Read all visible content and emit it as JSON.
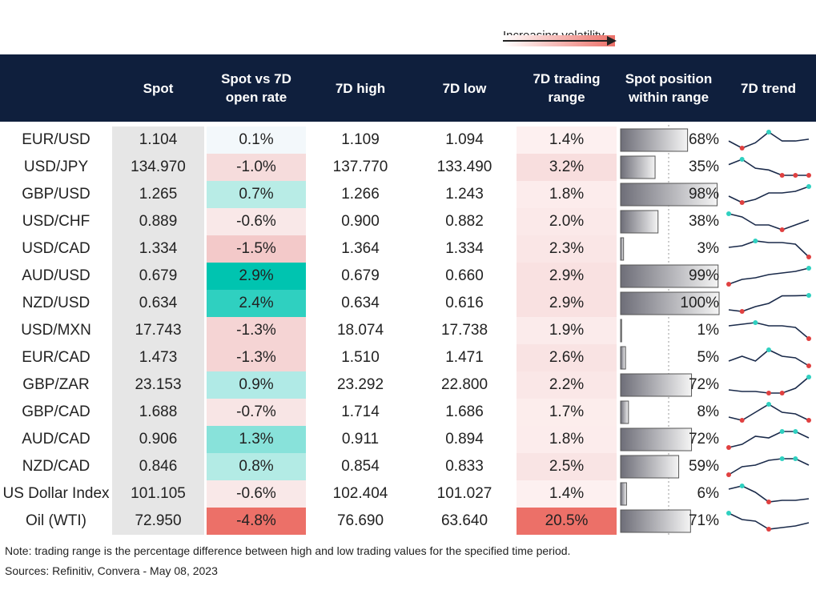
{
  "legend": {
    "text": "Increasing volatility"
  },
  "headers": [
    "Spot",
    "Spot vs 7D open rate",
    "7D high",
    "7D low",
    "7D trading range",
    "Spot position within range",
    "7D trend"
  ],
  "settings": {
    "header_color": "#0f1f3d",
    "spot_color": "#e6e6e6",
    "trend_line_color": "#1a2a4a",
    "max_color": "#2fd0c0",
    "min_color": "#e04040"
  },
  "rows": [
    {
      "pair": "EUR/USD",
      "spot": "1.104",
      "change": "0.1%",
      "change_color": "#f3f8fb",
      "high": "1.109",
      "low": "1.094",
      "range": "1.4%",
      "range_color": "#fdf0f0",
      "position": 68,
      "position_label": "68%",
      "trend": [
        0.5,
        0.1,
        0.4,
        1.0,
        0.5,
        0.5,
        0.6
      ]
    },
    {
      "pair": "USD/JPY",
      "spot": "134.970",
      "change": "-1.0%",
      "change_color": "#f6dcdc",
      "high": "137.770",
      "low": "133.490",
      "range": "3.2%",
      "range_color": "#f8dede",
      "position": 35,
      "position_label": "35%",
      "trend": [
        0.7,
        1.0,
        0.5,
        0.4,
        0.1,
        0.1,
        0.1
      ]
    },
    {
      "pair": "GBP/USD",
      "spot": "1.265",
      "change": "0.7%",
      "change_color": "#b8ece6",
      "high": "1.266",
      "low": "1.243",
      "range": "1.8%",
      "range_color": "#fcecec",
      "position": 98,
      "position_label": "98%",
      "trend": [
        0.4,
        0.0,
        0.2,
        0.6,
        0.6,
        0.7,
        1.0
      ]
    },
    {
      "pair": "USD/CHF",
      "spot": "0.889",
      "change": "-0.6%",
      "change_color": "#f9e8e8",
      "high": "0.900",
      "low": "0.882",
      "range": "2.0%",
      "range_color": "#fbe9e9",
      "position": 38,
      "position_label": "38%",
      "trend": [
        1.0,
        0.8,
        0.3,
        0.3,
        0.0,
        0.3,
        0.6
      ]
    },
    {
      "pair": "USD/CAD",
      "spot": "1.334",
      "change": "-1.5%",
      "change_color": "#f3c9c9",
      "high": "1.364",
      "low": "1.334",
      "range": "2.3%",
      "range_color": "#fae6e6",
      "position": 3,
      "position_label": "3%",
      "trend": [
        0.6,
        0.7,
        1.0,
        0.9,
        0.9,
        0.8,
        0.0
      ]
    },
    {
      "pair": "AUD/USD",
      "spot": "0.679",
      "change": "2.9%",
      "change_color": "#00c4b0",
      "high": "0.679",
      "low": "0.660",
      "range": "2.9%",
      "range_color": "#f9e1e1",
      "position": 99,
      "position_label": "99%",
      "trend": [
        0.0,
        0.3,
        0.4,
        0.6,
        0.7,
        0.8,
        1.0
      ]
    },
    {
      "pair": "NZD/USD",
      "spot": "0.634",
      "change": "2.4%",
      "change_color": "#2fd0c0",
      "high": "0.634",
      "low": "0.616",
      "range": "2.9%",
      "range_color": "#f9e1e1",
      "position": 100,
      "position_label": "100%",
      "trend": [
        0.1,
        0.0,
        0.3,
        0.5,
        0.97,
        0.98,
        1.0
      ]
    },
    {
      "pair": "USD/MXN",
      "spot": "17.743",
      "change": "-1.3%",
      "change_color": "#f5d4d4",
      "high": "18.074",
      "low": "17.738",
      "range": "1.9%",
      "range_color": "#fbebeb",
      "position": 1,
      "position_label": "1%",
      "trend": [
        0.8,
        0.9,
        1.0,
        0.8,
        0.8,
        0.7,
        0.0
      ]
    },
    {
      "pair": "EUR/CAD",
      "spot": "1.473",
      "change": "-1.3%",
      "change_color": "#f5d4d4",
      "high": "1.510",
      "low": "1.471",
      "range": "2.6%",
      "range_color": "#f9e3e3",
      "position": 5,
      "position_label": "5%",
      "trend": [
        0.3,
        0.6,
        0.3,
        1.0,
        0.6,
        0.5,
        0.0
      ]
    },
    {
      "pair": "GBP/ZAR",
      "spot": "23.153",
      "change": "0.9%",
      "change_color": "#b0eae6",
      "high": "23.292",
      "low": "22.800",
      "range": "2.2%",
      "range_color": "#fae7e7",
      "position": 72,
      "position_label": "72%",
      "trend": [
        0.2,
        0.1,
        0.1,
        0.0,
        0.0,
        0.3,
        1.0
      ]
    },
    {
      "pair": "GBP/CAD",
      "spot": "1.688",
      "change": "-0.7%",
      "change_color": "#f8e5e5",
      "high": "1.714",
      "low": "1.686",
      "range": "1.7%",
      "range_color": "#fcedec",
      "position": 8,
      "position_label": "8%",
      "trend": [
        0.2,
        0.0,
        0.5,
        1.0,
        0.5,
        0.4,
        0.0
      ]
    },
    {
      "pair": "AUD/CAD",
      "spot": "0.906",
      "change": "1.3%",
      "change_color": "#88e2da",
      "high": "0.911",
      "low": "0.894",
      "range": "1.8%",
      "range_color": "#fcecec",
      "position": 72,
      "position_label": "72%",
      "trend": [
        0.0,
        0.2,
        0.7,
        0.6,
        1.0,
        1.0,
        0.6
      ]
    },
    {
      "pair": "NZD/CAD",
      "spot": "0.846",
      "change": "0.8%",
      "change_color": "#b3ebe5",
      "high": "0.854",
      "low": "0.833",
      "range": "2.5%",
      "range_color": "#f9e4e4",
      "position": 59,
      "position_label": "59%",
      "trend": [
        0.0,
        0.5,
        0.6,
        0.9,
        1.0,
        1.0,
        0.6
      ]
    },
    {
      "pair": "US Dollar Index",
      "spot": "101.105",
      "change": "-0.6%",
      "change_color": "#f9e8e8",
      "high": "102.404",
      "low": "101.027",
      "range": "1.4%",
      "range_color": "#fdf0f0",
      "position": 6,
      "position_label": "6%",
      "trend": [
        0.8,
        1.0,
        0.6,
        0.0,
        0.1,
        0.1,
        0.2
      ]
    },
    {
      "pair": "Oil (WTI)",
      "spot": "72.950",
      "change": "-4.8%",
      "change_color": "#ec7068",
      "high": "76.690",
      "low": "63.640",
      "range": "20.5%",
      "range_color": "#ec7068",
      "position": 71,
      "position_label": "71%",
      "trend": [
        1.0,
        0.6,
        0.5,
        0.0,
        0.1,
        0.2,
        0.4
      ]
    }
  ],
  "notes": [
    "Note: trading range is the percentage difference between high and low trading values for the specified time period.",
    "Sources: Refinitiv, Convera - May 08, 2023"
  ]
}
